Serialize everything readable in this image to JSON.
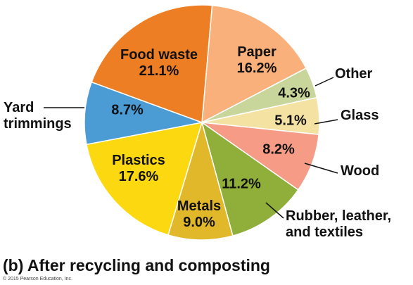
{
  "chart_data": {
    "type": "pie",
    "title": "(b) After recycling and composting",
    "credit": "© 2015 Pearson Education, Inc.",
    "categories": [
      "Paper",
      "Other",
      "Glass",
      "Wood",
      "Rubber, leather, and textiles",
      "Metals",
      "Plastics",
      "Yard trimmings",
      "Food waste"
    ],
    "values": [
      16.2,
      4.3,
      5.1,
      8.2,
      11.2,
      9.0,
      17.6,
      8.7,
      21.1
    ],
    "value_labels": [
      "16.2%",
      "4.3%",
      "5.1%",
      "8.2%",
      "11.2%",
      "9.0%",
      "17.6%",
      "8.7%",
      "21.1%"
    ],
    "colors": [
      "#f9b07a",
      "#c9d69b",
      "#f4e2a2",
      "#f59b86",
      "#8fae3a",
      "#e0b82a",
      "#fbd80f",
      "#4b9bd5",
      "#ee7e23"
    ]
  }
}
